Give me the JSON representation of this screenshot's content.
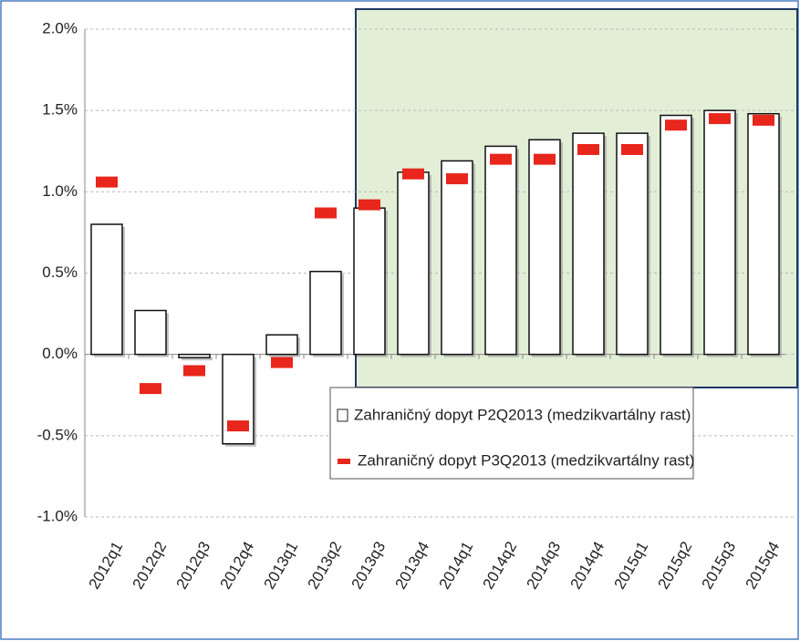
{
  "chart_data": {
    "type": "bar",
    "categories": [
      "2012q1",
      "2012q2",
      "2012q3",
      "2012q4",
      "2013q1",
      "2013q2",
      "2013q3",
      "2013q4",
      "2014q1",
      "2014q2",
      "2014q3",
      "2014q4",
      "2015q1",
      "2015q2",
      "2015q3",
      "2015q4"
    ],
    "series": [
      {
        "name": "Zahraničný dopyt P2Q2013 (medzikvartálny rast)",
        "color": "#ffffff",
        "values": [
          0.8,
          0.27,
          -0.02,
          -0.55,
          0.12,
          0.51,
          0.9,
          1.12,
          1.19,
          1.28,
          1.32,
          1.36,
          1.36,
          1.47,
          1.5,
          1.48
        ]
      },
      {
        "name": "Zahraničný dopyt P3Q2013 (medzikvartálny rast)",
        "color": "#e8261c",
        "values": [
          1.06,
          -0.21,
          -0.1,
          -0.44,
          -0.05,
          0.87,
          0.92,
          1.11,
          1.08,
          1.2,
          1.2,
          1.26,
          1.26,
          1.41,
          1.45,
          1.44
        ]
      }
    ],
    "ylim": [
      -1,
      2
    ],
    "yticks": [
      {
        "value": -1,
        "label": "-1.0%"
      },
      {
        "value": -0.5,
        "label": "-0.5%"
      },
      {
        "value": 0,
        "label": "0.0%"
      },
      {
        "value": 0.5,
        "label": "0.5%"
      },
      {
        "value": 1,
        "label": "1.0%"
      },
      {
        "value": 1.5,
        "label": "1.5%"
      },
      {
        "value": 2,
        "label": "2.0%"
      }
    ],
    "grid": true
  }
}
